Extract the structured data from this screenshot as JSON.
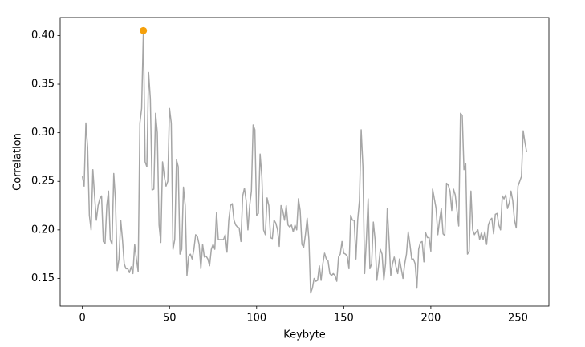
{
  "chart_data": {
    "type": "line",
    "xlabel": "Keybyte",
    "ylabel": "Correlation",
    "xlim": [
      -12.75,
      267.75
    ],
    "ylim": [
      0.1215,
      0.4185
    ],
    "xticks": [
      0,
      50,
      100,
      150,
      200,
      250
    ],
    "yticks": [
      0.15,
      {
        "value": 0.2,
        "label": "0.20"
      },
      0.25,
      {
        "value": 0.3,
        "label": "0.30"
      },
      0.35,
      {
        "value": 0.4,
        "label": "0.40"
      }
    ],
    "grid": false,
    "series": [
      {
        "type": "line",
        "color": "#a6a6a6",
        "x": [
          0,
          1,
          2,
          3,
          4,
          5,
          6,
          7,
          8,
          9,
          10,
          11,
          12,
          13,
          14,
          15,
          16,
          17,
          18,
          19,
          20,
          21,
          22,
          23,
          24,
          25,
          26,
          27,
          28,
          29,
          30,
          31,
          32,
          33,
          34,
          35,
          36,
          37,
          38,
          39,
          40,
          41,
          42,
          43,
          44,
          45,
          46,
          47,
          48,
          49,
          50,
          51,
          52,
          53,
          54,
          55,
          56,
          57,
          58,
          59,
          60,
          61,
          62,
          63,
          64,
          65,
          66,
          67,
          68,
          69,
          70,
          71,
          72,
          73,
          74,
          75,
          76,
          77,
          78,
          79,
          80,
          81,
          82,
          83,
          84,
          85,
          86,
          87,
          88,
          89,
          90,
          91,
          92,
          93,
          94,
          95,
          96,
          97,
          98,
          99,
          100,
          101,
          102,
          103,
          104,
          105,
          106,
          107,
          108,
          109,
          110,
          111,
          112,
          113,
          114,
          115,
          116,
          117,
          118,
          119,
          120,
          121,
          122,
          123,
          124,
          125,
          126,
          127,
          128,
          129,
          130,
          131,
          132,
          133,
          134,
          135,
          136,
          137,
          138,
          139,
          140,
          141,
          142,
          143,
          144,
          145,
          146,
          147,
          148,
          149,
          150,
          151,
          152,
          153,
          154,
          155,
          156,
          157,
          158,
          159,
          160,
          161,
          162,
          163,
          164,
          165,
          166,
          167,
          168,
          169,
          170,
          171,
          172,
          173,
          174,
          175,
          176,
          177,
          178,
          179,
          180,
          181,
          182,
          183,
          184,
          185,
          186,
          187,
          188,
          189,
          190,
          191,
          192,
          193,
          194,
          195,
          196,
          197,
          198,
          199,
          200,
          201,
          202,
          203,
          204,
          205,
          206,
          207,
          208,
          209,
          210,
          211,
          212,
          213,
          214,
          215,
          216,
          217,
          218,
          219,
          220,
          221,
          222,
          223,
          224,
          225,
          226,
          227,
          228,
          229,
          230,
          231,
          232,
          233,
          234,
          235,
          236,
          237,
          238,
          239,
          240,
          241,
          242,
          243,
          244,
          245,
          246,
          247,
          248,
          249,
          250,
          251,
          252,
          253,
          254,
          255
        ],
        "values": [
          0.255,
          0.245,
          0.31,
          0.285,
          0.215,
          0.2,
          0.262,
          0.235,
          0.21,
          0.225,
          0.232,
          0.235,
          0.188,
          0.186,
          0.225,
          0.24,
          0.19,
          0.185,
          0.258,
          0.23,
          0.158,
          0.17,
          0.21,
          0.19,
          0.165,
          0.16,
          0.16,
          0.156,
          0.162,
          0.155,
          0.185,
          0.17,
          0.157,
          0.31,
          0.325,
          0.405,
          0.27,
          0.265,
          0.362,
          0.335,
          0.241,
          0.242,
          0.32,
          0.3,
          0.205,
          0.187,
          0.27,
          0.255,
          0.245,
          0.25,
          0.325,
          0.31,
          0.18,
          0.19,
          0.272,
          0.265,
          0.175,
          0.18,
          0.244,
          0.225,
          0.153,
          0.173,
          0.175,
          0.17,
          0.18,
          0.195,
          0.193,
          0.185,
          0.16,
          0.185,
          0.172,
          0.173,
          0.17,
          0.163,
          0.18,
          0.185,
          0.18,
          0.218,
          0.19,
          0.19,
          0.19,
          0.19,
          0.195,
          0.177,
          0.21,
          0.225,
          0.227,
          0.21,
          0.205,
          0.203,
          0.202,
          0.188,
          0.235,
          0.243,
          0.23,
          0.2,
          0.225,
          0.24,
          0.308,
          0.303,
          0.215,
          0.217,
          0.278,
          0.255,
          0.2,
          0.195,
          0.233,
          0.225,
          0.192,
          0.191,
          0.21,
          0.207,
          0.2,
          0.183,
          0.225,
          0.22,
          0.21,
          0.225,
          0.205,
          0.203,
          0.205,
          0.198,
          0.205,
          0.2,
          0.232,
          0.22,
          0.185,
          0.182,
          0.195,
          0.212,
          0.19,
          0.135,
          0.14,
          0.15,
          0.147,
          0.148,
          0.163,
          0.148,
          0.165,
          0.176,
          0.17,
          0.168,
          0.155,
          0.153,
          0.155,
          0.153,
          0.147,
          0.172,
          0.175,
          0.188,
          0.176,
          0.175,
          0.173,
          0.16,
          0.215,
          0.21,
          0.21,
          0.17,
          0.21,
          0.23,
          0.303,
          0.265,
          0.155,
          0.19,
          0.232,
          0.16,
          0.165,
          0.208,
          0.19,
          0.148,
          0.163,
          0.18,
          0.175,
          0.148,
          0.165,
          0.222,
          0.19,
          0.153,
          0.165,
          0.172,
          0.162,
          0.155,
          0.17,
          0.16,
          0.15,
          0.165,
          0.175,
          0.198,
          0.185,
          0.17,
          0.17,
          0.165,
          0.14,
          0.18,
          0.187,
          0.188,
          0.167,
          0.197,
          0.192,
          0.192,
          0.178,
          0.242,
          0.232,
          0.222,
          0.195,
          0.21,
          0.222,
          0.196,
          0.194,
          0.248,
          0.246,
          0.24,
          0.22,
          0.242,
          0.236,
          0.22,
          0.204,
          0.32,
          0.318,
          0.262,
          0.268,
          0.175,
          0.178,
          0.24,
          0.2,
          0.195,
          0.198,
          0.2,
          0.19,
          0.197,
          0.19,
          0.198,
          0.185,
          0.205,
          0.21,
          0.212,
          0.196,
          0.216,
          0.217,
          0.205,
          0.2,
          0.235,
          0.232,
          0.236,
          0.222,
          0.228,
          0.24,
          0.23,
          0.21,
          0.202,
          0.245,
          0.25,
          0.255,
          0.302,
          0.29,
          0.28
        ]
      },
      {
        "type": "scatter",
        "color": "#f5a00a",
        "x": [
          35
        ],
        "values": [
          0.405
        ]
      }
    ]
  }
}
